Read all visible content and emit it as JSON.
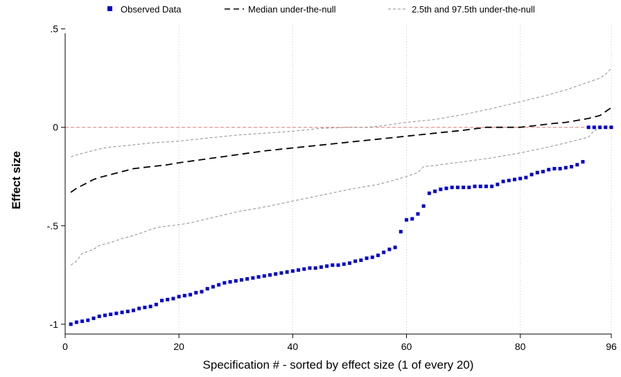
{
  "chart_data": {
    "type": "scatter",
    "xlabel": "Specification # - sorted by effect size (1 of every 20)",
    "ylabel": "Effect size",
    "xlim": [
      0,
      96
    ],
    "ylim": [
      -1.05,
      0.52
    ],
    "x_ticks": [
      0,
      20,
      40,
      60,
      80,
      96
    ],
    "x_tick_labels": [
      "0",
      "20",
      "40",
      "60",
      "80",
      "96"
    ],
    "y_ticks": [
      0.5,
      0,
      -0.5,
      -1
    ],
    "y_tick_labels": [
      ".5",
      "0",
      "-.5",
      "-1"
    ],
    "x_grid": "dotted vertical lines at x ticks",
    "reference_line": {
      "y": 0,
      "style": "dashed",
      "color": "#e8908a"
    },
    "legend_position": "top",
    "colors": {
      "observed": "#0000cc",
      "median": "#000000",
      "bounds": "#8c8c8c",
      "reference": "#e8908a",
      "axis": "#000000",
      "grid": "#c8c8c8"
    },
    "series": [
      {
        "name": "Observed Data",
        "style": "square markers",
        "x": [
          1,
          2,
          3,
          4,
          5,
          6,
          7,
          8,
          9,
          10,
          11,
          12,
          13,
          14,
          15,
          16,
          17,
          18,
          19,
          20,
          21,
          22,
          23,
          24,
          25,
          26,
          27,
          28,
          29,
          30,
          31,
          32,
          33,
          34,
          35,
          36,
          37,
          38,
          39,
          40,
          41,
          42,
          43,
          44,
          45,
          46,
          47,
          48,
          49,
          50,
          51,
          52,
          53,
          54,
          55,
          56,
          57,
          58,
          59,
          60,
          61,
          62,
          63,
          64,
          65,
          66,
          67,
          68,
          69,
          70,
          71,
          72,
          73,
          74,
          75,
          76,
          77,
          78,
          79,
          80,
          81,
          82,
          83,
          84,
          85,
          86,
          87,
          88,
          89,
          90,
          91,
          92,
          93,
          94,
          95,
          96
        ],
        "y": [
          -1.0,
          -0.99,
          -0.985,
          -0.98,
          -0.97,
          -0.96,
          -0.955,
          -0.95,
          -0.945,
          -0.94,
          -0.935,
          -0.93,
          -0.92,
          -0.915,
          -0.91,
          -0.9,
          -0.88,
          -0.875,
          -0.87,
          -0.86,
          -0.855,
          -0.85,
          -0.84,
          -0.835,
          -0.82,
          -0.81,
          -0.8,
          -0.79,
          -0.785,
          -0.78,
          -0.775,
          -0.77,
          -0.765,
          -0.76,
          -0.755,
          -0.75,
          -0.745,
          -0.74,
          -0.735,
          -0.73,
          -0.725,
          -0.72,
          -0.715,
          -0.715,
          -0.71,
          -0.705,
          -0.7,
          -0.7,
          -0.695,
          -0.69,
          -0.68,
          -0.675,
          -0.665,
          -0.66,
          -0.65,
          -0.635,
          -0.62,
          -0.61,
          -0.53,
          -0.47,
          -0.465,
          -0.44,
          -0.4,
          -0.335,
          -0.325,
          -0.315,
          -0.31,
          -0.305,
          -0.305,
          -0.305,
          -0.305,
          -0.3,
          -0.3,
          -0.3,
          -0.3,
          -0.29,
          -0.275,
          -0.27,
          -0.265,
          -0.26,
          -0.255,
          -0.24,
          -0.23,
          -0.225,
          -0.215,
          -0.21,
          -0.21,
          -0.205,
          -0.2,
          -0.19,
          -0.175,
          0,
          0,
          0,
          0,
          0
        ]
      },
      {
        "name": "Median under-the-null",
        "style": "long dash line",
        "x": [
          1,
          2,
          3,
          4,
          5,
          6,
          8,
          10,
          12,
          15,
          18,
          20,
          25,
          30,
          35,
          40,
          45,
          50,
          55,
          60,
          65,
          70,
          74,
          75,
          78,
          80,
          83,
          86,
          88,
          90,
          92,
          94,
          95,
          96
        ],
        "y": [
          -0.33,
          -0.31,
          -0.295,
          -0.28,
          -0.265,
          -0.255,
          -0.24,
          -0.225,
          -0.21,
          -0.2,
          -0.19,
          -0.18,
          -0.16,
          -0.14,
          -0.12,
          -0.105,
          -0.09,
          -0.075,
          -0.06,
          -0.045,
          -0.03,
          -0.015,
          0,
          0,
          0,
          0,
          0.01,
          0.02,
          0.025,
          0.035,
          0.045,
          0.06,
          0.08,
          0.1
        ]
      },
      {
        "name": "2.5th and 97.5th under-the-null",
        "style": "short dash lines",
        "lower": {
          "x": [
            1,
            2,
            3,
            4,
            5,
            6,
            8,
            10,
            12,
            14,
            15,
            16,
            17,
            20,
            22,
            25,
            28,
            30,
            35,
            40,
            45,
            50,
            55,
            57,
            60,
            62,
            63,
            66,
            70,
            75,
            80,
            85,
            90,
            92,
            93,
            95,
            96
          ],
          "y": [
            -0.7,
            -0.68,
            -0.64,
            -0.63,
            -0.62,
            -0.6,
            -0.585,
            -0.565,
            -0.55,
            -0.53,
            -0.52,
            -0.51,
            -0.505,
            -0.495,
            -0.485,
            -0.465,
            -0.445,
            -0.43,
            -0.405,
            -0.375,
            -0.345,
            -0.315,
            -0.29,
            -0.275,
            -0.25,
            -0.23,
            -0.2,
            -0.19,
            -0.175,
            -0.155,
            -0.13,
            -0.1,
            -0.065,
            -0.05,
            -0.015,
            0,
            0
          ]
        },
        "upper": {
          "x": [
            1,
            2,
            4,
            6,
            8,
            10,
            15,
            20,
            25,
            30,
            35,
            40,
            45,
            50,
            53,
            55,
            60,
            65,
            70,
            75,
            80,
            85,
            88,
            90,
            92,
            94,
            95,
            96
          ],
          "y": [
            -0.15,
            -0.14,
            -0.125,
            -0.11,
            -0.1,
            -0.095,
            -0.08,
            -0.07,
            -0.055,
            -0.04,
            -0.03,
            -0.02,
            -0.005,
            0,
            0,
            0.005,
            0.025,
            0.04,
            0.065,
            0.095,
            0.13,
            0.165,
            0.19,
            0.21,
            0.23,
            0.25,
            0.27,
            0.3
          ]
        }
      }
    ]
  }
}
